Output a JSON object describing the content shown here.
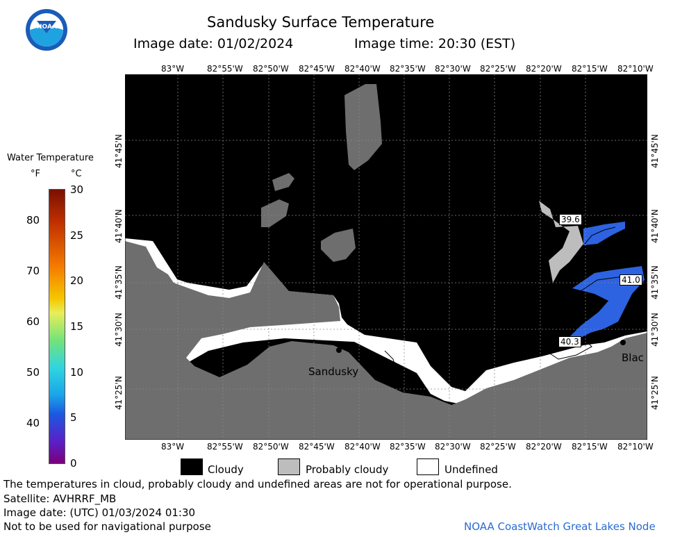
{
  "header": {
    "title": "Sandusky Surface Temperature",
    "image_date": "Image date: 01/02/2024",
    "image_time": "Image time: 20:30 (EST)"
  },
  "logo": {
    "text": "NOAA",
    "icon": "noaa-logo-icon"
  },
  "colorbar": {
    "title": "Water Temperature",
    "unit_f": "°F",
    "unit_c": "°C",
    "f_ticks": [
      "80",
      "70",
      "60",
      "50",
      "40"
    ],
    "c_ticks": [
      "30",
      "25",
      "20",
      "15",
      "10",
      "5",
      "0"
    ],
    "range_c": [
      0,
      30
    ]
  },
  "map": {
    "lon_ticks": [
      "83°W",
      "82°55'W",
      "82°50'W",
      "82°45'W",
      "82°40'W",
      "82°35'W",
      "82°30'W",
      "82°25'W",
      "82°20'W",
      "82°15'W",
      "82°10'W"
    ],
    "lat_ticks": [
      "41°45'N",
      "41°40'N",
      "41°35'N",
      "41°30'N",
      "41°25'N"
    ],
    "place_labels": [
      "Sandusky",
      "Blac"
    ],
    "temperature_labels": [
      "39.6",
      "41.0",
      "40.3"
    ],
    "colors": {
      "cloudy": "#000000",
      "probably_cloudy": "#bdbdbd",
      "undefined": "#ffffff",
      "land": "#6e6e6e",
      "water_temp": "#2d63e0"
    }
  },
  "legend": {
    "cloudy": "Cloudy",
    "probably_cloudy": "Probably cloudy",
    "undefined": "Undefined"
  },
  "footer": {
    "disclaimer": "The temperatures in cloud, probably cloudy and undefined areas are not for operational purpose.",
    "satellite": "Satellite: AVHRRF_MB",
    "utc_date": "Image date: (UTC) 01/03/2024  01:30",
    "nav_warning": "Not to be used for navigational purpose",
    "credit": "NOAA CoastWatch Great Lakes Node"
  }
}
